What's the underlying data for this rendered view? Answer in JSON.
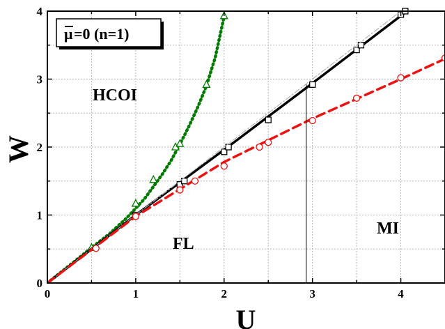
{
  "chart_data": {
    "type": "line",
    "title": "",
    "xlabel": "U",
    "ylabel": "W",
    "xlim": [
      0,
      4.5
    ],
    "ylim": [
      0,
      4
    ],
    "xticks": [
      0,
      1,
      2,
      3,
      4
    ],
    "yticks": [
      0,
      1,
      2,
      3,
      4
    ],
    "x_tick_labels": [
      "0",
      "1",
      "2",
      "3",
      "4"
    ],
    "y_tick_labels": [
      "0",
      "1",
      "2",
      "3",
      "4"
    ],
    "grid": true,
    "legend_box": {
      "mu": "μ",
      "text": "=0 (n=1)"
    },
    "region_labels": [
      "HCOI",
      "FL",
      "MI"
    ],
    "vertical_line_x": 2.93,
    "series": [
      {
        "color": "#007a00",
        "line_style": "dotted",
        "marker": "triangle",
        "curve": [
          [
            0,
            0
          ],
          [
            0.3,
            0.31
          ],
          [
            0.5,
            0.52
          ],
          [
            0.7,
            0.72
          ],
          [
            0.9,
            0.96
          ],
          [
            1.0,
            1.1
          ],
          [
            1.1,
            1.24
          ],
          [
            1.2,
            1.42
          ],
          [
            1.3,
            1.6
          ],
          [
            1.4,
            1.8
          ],
          [
            1.5,
            2.04
          ],
          [
            1.6,
            2.3
          ],
          [
            1.7,
            2.58
          ],
          [
            1.8,
            2.9
          ],
          [
            1.9,
            3.32
          ],
          [
            2.0,
            3.92
          ]
        ],
        "points": [
          [
            0.5,
            0.52
          ],
          [
            1.0,
            1.17
          ],
          [
            1.2,
            1.52
          ],
          [
            1.45,
            2.0
          ],
          [
            1.5,
            2.05
          ],
          [
            1.8,
            2.92
          ],
          [
            2.0,
            3.93
          ]
        ]
      },
      {
        "color": "#000000",
        "line_style": "solid",
        "marker": "square",
        "curve": [
          [
            0,
            0
          ],
          [
            1.0,
            1.0
          ],
          [
            2.0,
            1.96
          ],
          [
            3.0,
            2.94
          ],
          [
            4.07,
            4.0
          ]
        ],
        "points": [
          [
            1.0,
            1.0
          ],
          [
            1.5,
            1.45
          ],
          [
            1.55,
            1.5
          ],
          [
            2.0,
            1.93
          ],
          [
            2.05,
            2.0
          ],
          [
            2.5,
            2.4
          ],
          [
            3.0,
            2.92
          ],
          [
            3.5,
            3.43
          ],
          [
            3.55,
            3.5
          ],
          [
            4.0,
            3.95
          ],
          [
            4.05,
            4.0
          ]
        ]
      },
      {
        "color": "#b0b0b0",
        "line_style": "dash-dot",
        "marker": "none",
        "curve": [
          [
            0,
            0
          ],
          [
            4.0,
            4.0
          ]
        ],
        "points": []
      },
      {
        "color": "#ee1111",
        "line_style": "dashed",
        "marker": "circle",
        "curve": [
          [
            0,
            0
          ],
          [
            1.0,
            0.98
          ],
          [
            2.0,
            1.78
          ],
          [
            3.0,
            2.42
          ],
          [
            4.0,
            3.0
          ],
          [
            4.5,
            3.3
          ]
        ],
        "points": [
          [
            0.55,
            0.51
          ],
          [
            1.0,
            0.98
          ],
          [
            1.5,
            1.37
          ],
          [
            1.67,
            1.5
          ],
          [
            2.0,
            1.72
          ],
          [
            2.4,
            2.0
          ],
          [
            2.5,
            2.07
          ],
          [
            3.0,
            2.39
          ],
          [
            3.5,
            2.72
          ],
          [
            4.0,
            3.02
          ],
          [
            4.5,
            3.31
          ]
        ]
      }
    ]
  }
}
